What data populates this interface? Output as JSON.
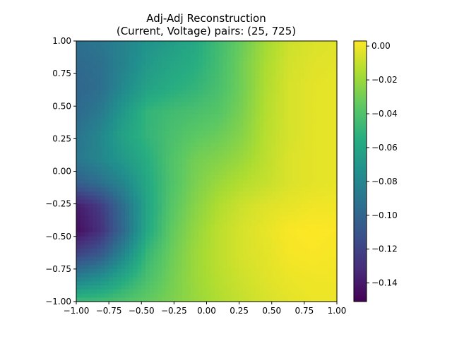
{
  "chart_data": {
    "type": "heatmap",
    "title": "Adj-Adj Reconstruction",
    "subtitle": "(Current, Voltage) pairs: (25, 725)",
    "xlabel": "",
    "ylabel": "",
    "xlim": [
      -1.0,
      1.0
    ],
    "ylim": [
      -1.0,
      1.0
    ],
    "x_ticks": [
      "−1.00",
      "−0.75",
      "−0.50",
      "−0.25",
      "0.00",
      "0.25",
      "0.50",
      "0.75",
      "1.00"
    ],
    "y_ticks": [
      "−1.00",
      "−0.75",
      "−0.50",
      "−0.25",
      "0.00",
      "0.25",
      "0.50",
      "0.75",
      "1.00"
    ],
    "colormap": "viridis",
    "colorbar": {
      "vmin": -0.151,
      "vmax": 0.003,
      "ticks": [
        "0.00",
        "−0.02",
        "−0.04",
        "−0.06",
        "−0.08",
        "−0.10",
        "−0.12",
        "−0.14"
      ],
      "tick_values": [
        0.0,
        -0.02,
        -0.04,
        -0.06,
        -0.08,
        -0.1,
        -0.12,
        -0.14
      ]
    },
    "grid": false,
    "grid_columns": 12,
    "grid_rows": 12,
    "grid_note": "approximate values sampled on a 12x12 grid; rows from y=1.0 (top) to y=-1.0 (bottom), columns from x=-1.0 to x=1.0",
    "values": [
      [
        -0.095,
        -0.09,
        -0.082,
        -0.072,
        -0.066,
        -0.058,
        -0.045,
        -0.032,
        -0.018,
        -0.008,
        -0.005,
        -0.004
      ],
      [
        -0.098,
        -0.094,
        -0.082,
        -0.068,
        -0.06,
        -0.055,
        -0.044,
        -0.03,
        -0.016,
        -0.007,
        -0.004,
        -0.003
      ],
      [
        -0.1,
        -0.095,
        -0.078,
        -0.062,
        -0.055,
        -0.05,
        -0.042,
        -0.03,
        -0.015,
        -0.006,
        -0.003,
        -0.002
      ],
      [
        -0.098,
        -0.088,
        -0.068,
        -0.05,
        -0.045,
        -0.042,
        -0.038,
        -0.028,
        -0.014,
        -0.006,
        -0.003,
        -0.002
      ],
      [
        -0.092,
        -0.08,
        -0.062,
        -0.05,
        -0.042,
        -0.036,
        -0.032,
        -0.025,
        -0.013,
        -0.006,
        -0.003,
        -0.002
      ],
      [
        -0.09,
        -0.08,
        -0.068,
        -0.055,
        -0.04,
        -0.03,
        -0.026,
        -0.02,
        -0.012,
        -0.005,
        -0.003,
        -0.002
      ],
      [
        -0.105,
        -0.095,
        -0.08,
        -0.058,
        -0.04,
        -0.028,
        -0.02,
        -0.014,
        -0.01,
        -0.005,
        -0.003,
        -0.002
      ],
      [
        -0.14,
        -0.125,
        -0.095,
        -0.06,
        -0.038,
        -0.025,
        -0.015,
        -0.008,
        -0.004,
        -0.002,
        0.0,
        0.0
      ],
      [
        -0.145,
        -0.13,
        -0.098,
        -0.058,
        -0.035,
        -0.022,
        -0.012,
        -0.006,
        -0.002,
        0.002,
        0.003,
        0.002
      ],
      [
        -0.12,
        -0.108,
        -0.08,
        -0.048,
        -0.032,
        -0.02,
        -0.012,
        -0.006,
        -0.003,
        0.001,
        0.002,
        0.001
      ],
      [
        -0.085,
        -0.075,
        -0.058,
        -0.042,
        -0.03,
        -0.02,
        -0.013,
        -0.008,
        -0.004,
        -0.001,
        0.0,
        0.0
      ],
      [
        -0.045,
        -0.045,
        -0.04,
        -0.034,
        -0.028,
        -0.021,
        -0.015,
        -0.01,
        -0.006,
        -0.003,
        -0.001,
        -0.001
      ]
    ]
  }
}
